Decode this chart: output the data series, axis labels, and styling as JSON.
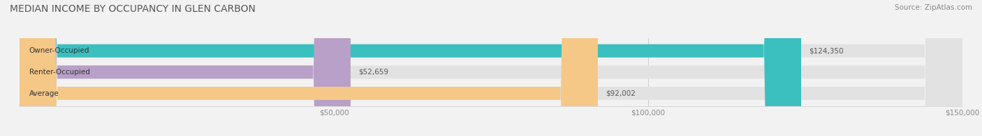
{
  "title": "MEDIAN INCOME BY OCCUPANCY IN GLEN CARBON",
  "source": "Source: ZipAtlas.com",
  "categories": [
    "Owner-Occupied",
    "Renter-Occupied",
    "Average"
  ],
  "values": [
    124350,
    52659,
    92002
  ],
  "bar_colors": [
    "#3bbfbf",
    "#b8a0c8",
    "#f5c887"
  ],
  "bar_labels": [
    "$124,350",
    "$52,659",
    "$92,002"
  ],
  "xlim": [
    0,
    150000
  ],
  "xtick_vals": [
    50000,
    100000,
    150000
  ],
  "xtick_labels": [
    "$50,000",
    "$100,000",
    "$150,000"
  ],
  "background_color": "#f2f2f2",
  "bar_bg_color": "#e2e2e2",
  "title_fontsize": 10,
  "source_fontsize": 7.5,
  "label_fontsize": 7.5,
  "tick_fontsize": 7.5
}
